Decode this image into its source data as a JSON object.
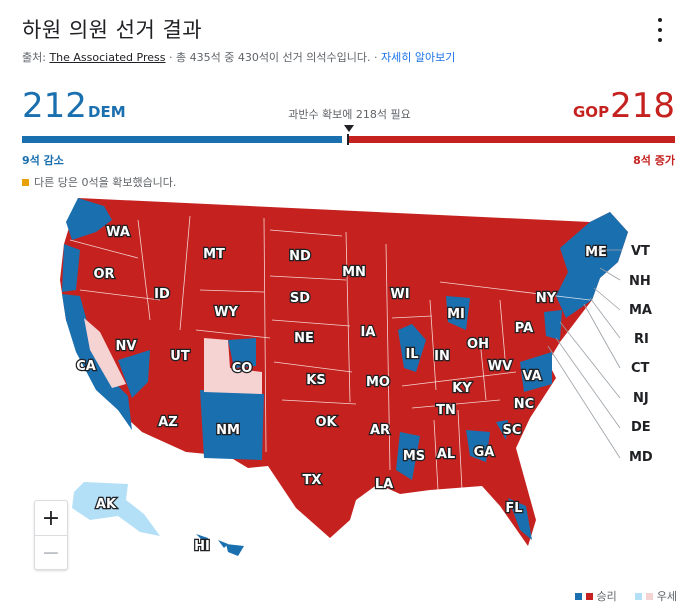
{
  "header": {
    "title": "하원 의원 선거 결과",
    "source_prefix": "출처: ",
    "source_name": "The Associated Press",
    "source_rest": " · 총 435석 중 430석이 선거 의석수입니다. · ",
    "learn_more": "자세히 알아보기",
    "menu_icon": "more-vert-icon"
  },
  "scoreboard": {
    "dem_seats": "212",
    "dem_label": "DEM",
    "gop_seats": "218",
    "gop_label": "GOP",
    "majority_text": "과반수 확보에 218석 필요",
    "dem_change": "9석 감소",
    "gop_change": "8석 증가",
    "other_text": "다른 당은 0석을 확보했습니다.",
    "colors": {
      "dem": "#1a6faf",
      "gop": "#c5221f",
      "other": "#e8a10c"
    }
  },
  "map": {
    "state_labels": [
      "WA",
      "OR",
      "CA",
      "NV",
      "ID",
      "MT",
      "WY",
      "UT",
      "CO",
      "AZ",
      "NM",
      "ND",
      "SD",
      "NE",
      "KS",
      "OK",
      "TX",
      "MN",
      "IA",
      "MO",
      "AR",
      "LA",
      "WI",
      "IL",
      "MI",
      "IN",
      "OH",
      "KY",
      "TN",
      "MS",
      "AL",
      "GA",
      "FL",
      "SC",
      "NC",
      "VA",
      "WV",
      "PA",
      "NY",
      "ME",
      "AK",
      "HI"
    ],
    "callout_labels": [
      "VT",
      "NH",
      "MA",
      "RI",
      "CT",
      "NJ",
      "DE",
      "MD"
    ],
    "colors": {
      "won_dem": "#1a6faf",
      "won_gop": "#c5221f",
      "lean_dem": "#b3e0f7",
      "lean_gop": "#f6d3d3"
    }
  },
  "zoom": {
    "in": "+",
    "out": "−"
  },
  "legend": {
    "won": "승리",
    "leading": "우세"
  }
}
